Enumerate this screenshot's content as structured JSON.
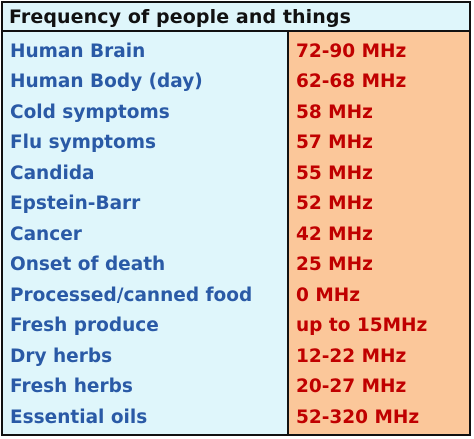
{
  "title": "Frequency of people and things",
  "rows": [
    {
      "label": "Human Brain",
      "value": "72-90 MHz"
    },
    {
      "label": "Human Body (day)",
      "value": "62-68 MHz"
    },
    {
      "label": "Cold symptoms",
      "value": "58 MHz"
    },
    {
      "label": "Flu symptoms",
      "value": "57 MHz"
    },
    {
      "label": "Candida",
      "value": "55 MHz"
    },
    {
      "label": "Epstein-Barr",
      "value": "52 MHz"
    },
    {
      "label": "Cancer",
      "value": "42 MHz"
    },
    {
      "label": "Onset of death",
      "value": "25 MHz"
    },
    {
      "label": "Processed/canned food",
      "value": "0 MHz"
    },
    {
      "label": "Fresh produce",
      "value": "up to 15MHz"
    },
    {
      "label": "Dry herbs",
      "value": "12-22 MHz"
    },
    {
      "label": "Fresh herbs",
      "value": "20-27 MHz"
    },
    {
      "label": "Essential oils",
      "value": "52-320 MHz"
    }
  ],
  "colors": {
    "label_text": "#2a5aa6",
    "value_text": "#c00000",
    "left_background": "#dff6fb",
    "right_background": "#fbc79a",
    "border": "#111111"
  }
}
